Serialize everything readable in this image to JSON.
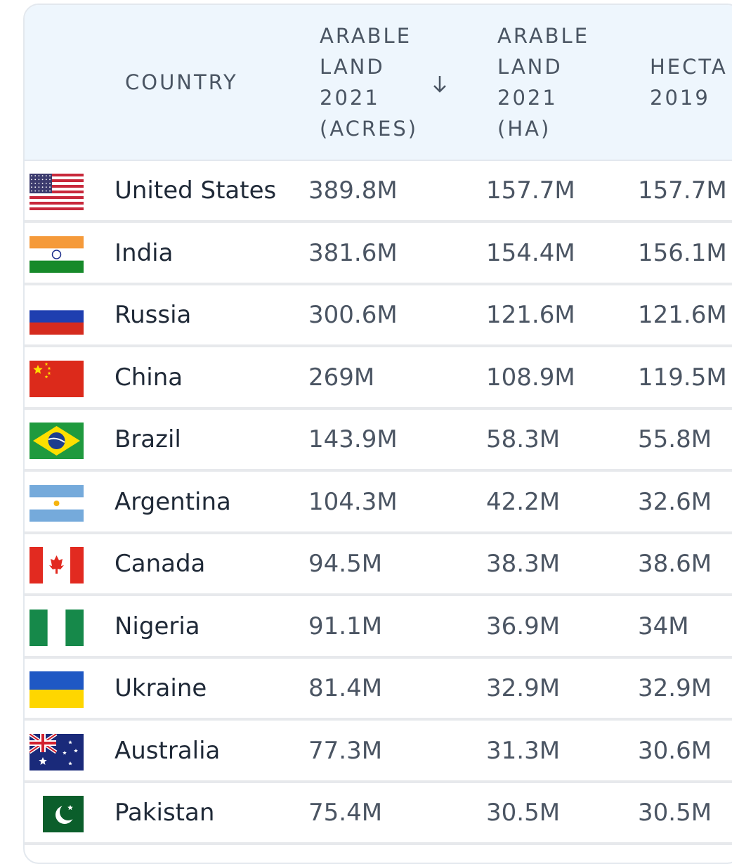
{
  "header": {
    "columns": [
      "COUNTRY",
      "ARABLE LAND 2021 (ACRES)",
      "ARABLE LAND 2021 (HA)",
      "HECTA 2019"
    ]
  },
  "table": {
    "rows": [
      [
        "United States",
        "389.8M",
        "157.7M",
        "157.7M"
      ],
      [
        "India",
        "381.6M",
        "154.4M",
        "156.1M"
      ],
      [
        "Russia",
        "300.6M",
        "121.6M",
        "121.6M"
      ],
      [
        "China",
        "269M",
        "108.9M",
        "119.5M"
      ],
      [
        "Brazil",
        "143.9M",
        "58.3M",
        "55.8M"
      ],
      [
        "Argentina",
        "104.3M",
        "42.2M",
        "32.6M"
      ],
      [
        "Canada",
        "94.5M",
        "38.3M",
        "38.6M"
      ],
      [
        "Nigeria",
        "91.1M",
        "36.9M",
        "34M"
      ],
      [
        "Ukraine",
        "81.4M",
        "32.9M",
        "32.9M"
      ],
      [
        "Australia",
        "77.3M",
        "31.3M",
        "30.6M"
      ],
      [
        "Pakistan",
        "75.4M",
        "30.5M",
        "30.5M"
      ]
    ]
  }
}
